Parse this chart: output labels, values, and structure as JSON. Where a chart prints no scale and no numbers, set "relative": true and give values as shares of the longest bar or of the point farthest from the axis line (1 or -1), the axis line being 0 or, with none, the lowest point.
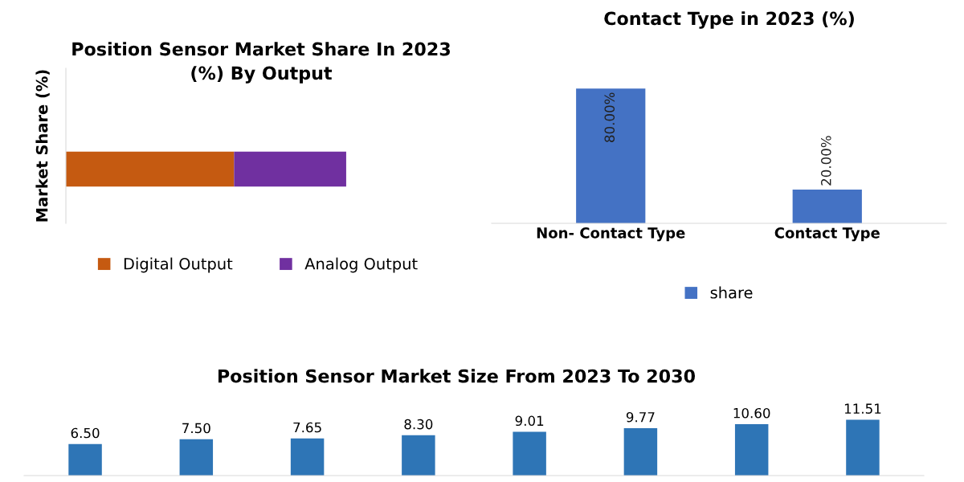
{
  "chart_data": [
    {
      "type": "bar",
      "title": "Position Sensor Market Share In 2023 (%) By Output",
      "ylabel": "Market Share (%)",
      "orientation": "horizontal",
      "stacked": true,
      "relative": true,
      "categories": [
        null
      ],
      "legend": "bottom",
      "series": [
        {
          "name": "Digital Output",
          "color": "#c55a11",
          "values": [
            0.6
          ]
        },
        {
          "name": "Analog Output",
          "color": "#7030a0",
          "values": [
            0.4
          ]
        }
      ]
    },
    {
      "type": "bar",
      "title": "Contact Type in 2023 (%)",
      "categories": [
        "Non- Contact Type",
        "Contact Type"
      ],
      "legend": "bottom",
      "series": [
        {
          "name": "share",
          "color": "#4472c4",
          "values": [
            80,
            20
          ],
          "value_labels": [
            "80.00%",
            "20.00%"
          ]
        }
      ]
    },
    {
      "type": "bar",
      "title": "Position Sensor Market Size From 2023 To 2030",
      "categories": [
        null,
        null,
        null,
        null,
        null,
        null,
        null,
        null
      ],
      "series": [
        {
          "color": "#2e75b6",
          "values": [
            6.5,
            7.5,
            7.65,
            8.3,
            9.01,
            9.77,
            10.6,
            11.51
          ],
          "value_labels": [
            "6.50",
            "7.50",
            "7.65",
            "8.30",
            "9.01",
            "9.77",
            "10.60",
            "11.51"
          ]
        }
      ]
    }
  ]
}
